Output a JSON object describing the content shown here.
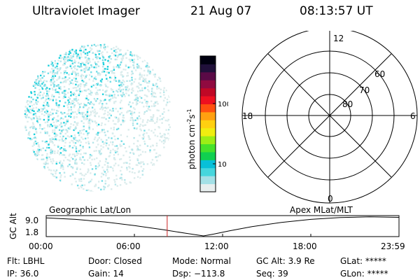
{
  "header": {
    "instrument": "Ultraviolet Imager",
    "date": "21 Aug 07",
    "time": "08:13:57 UT"
  },
  "colorbar": {
    "label": "photon cm",
    "label_sup1": "-2",
    "label_mid": "s",
    "label_sup2": "-1",
    "ticks": [
      {
        "label": "100",
        "value": 100
      },
      {
        "label": "10",
        "value": 10
      }
    ],
    "colors": [
      "#e8eeee",
      "#a4e0e6",
      "#46d6dd",
      "#08c0d8",
      "#10d050",
      "#46e22a",
      "#9cee16",
      "#f0ee10",
      "#ffd010",
      "#ffa010",
      "#ff5010",
      "#ee1020",
      "#c00826",
      "#900a40",
      "#5a0a46",
      "#20103a",
      "#000010"
    ]
  },
  "polar": {
    "labels": {
      "top": "12",
      "bottom": "0",
      "left": "18",
      "right": "6",
      "lat80": "80",
      "lat70": "70",
      "lat60": "60"
    }
  },
  "timeline": {
    "ylabel": "GC Alt",
    "y_ticks": [
      "9.0",
      "1.8"
    ],
    "left_title": "Geographic Lat/Lon",
    "right_title": "Apex MLat/MLT",
    "x_ticks": [
      "00:00",
      "06:00",
      "12:00",
      "18:00",
      "23:59"
    ],
    "marker_hours": 8.23,
    "marker_color": "#cc2222"
  },
  "info": {
    "flt": "Flt: LBHL",
    "ip": "IP: 36.0",
    "door": "Door: Closed",
    "gain": "Gain: 14",
    "mode": "Mode: Normal",
    "dsp": "Dsp: −113.8",
    "gcalt": "GC Alt: 3.9 Re",
    "seq": "Seq: 39",
    "glat": "GLat: *****",
    "glon": "GLon: *****"
  }
}
